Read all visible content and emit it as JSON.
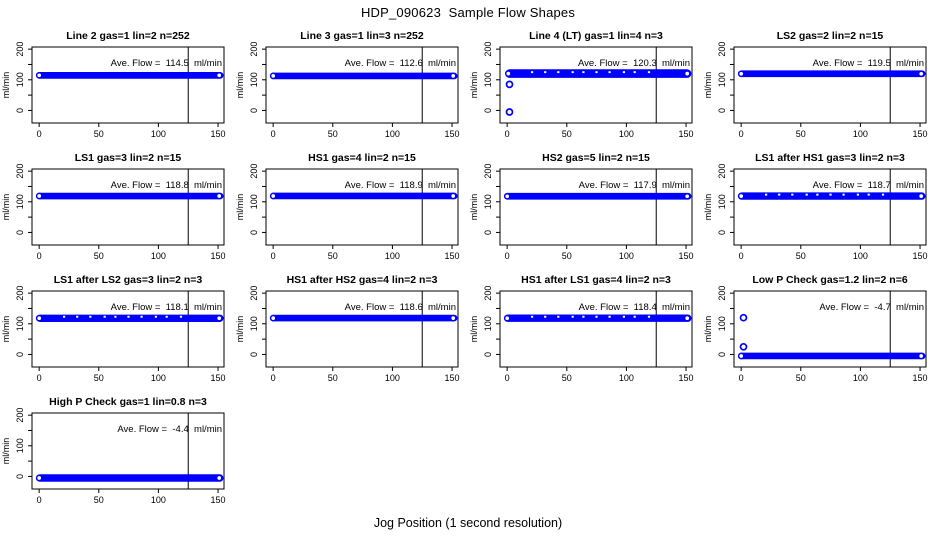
{
  "page": {
    "title": "HDP_090623  Sample Flow Shapes",
    "x_axis_label": "Jog Position (1 second resolution)"
  },
  "colors": {
    "accent": "#0000FF",
    "axis": "#000000",
    "background": "#FFFFFF"
  },
  "chart_data": [
    {
      "type": "scatter",
      "title": "Line 2 gas=1 lin=2 n=252",
      "annotation": "Ave. Flow =  114.5  ml/min",
      "ave_flow_ml_min": 114.5,
      "ylabel": "ml/min",
      "x_ticks": [
        0,
        50,
        100,
        150
      ],
      "y_ticks_all": [
        0,
        50,
        100,
        150,
        200
      ],
      "y_ticks_labeled": [
        0,
        100,
        200
      ],
      "xlim": [
        -6,
        155
      ],
      "ylim": [
        -41,
        207
      ],
      "vline_x": 125,
      "band": {
        "x_start": 0,
        "x_end": 152,
        "y_center": 114.5,
        "y_halfwidth": 11
      },
      "outliers": [],
      "speckled": false
    },
    {
      "type": "scatter",
      "title": "Line 3 gas=1 lin=3 n=252",
      "annotation": "Ave. Flow =  112.6  ml/min",
      "ave_flow_ml_min": 112.6,
      "ylabel": "ml/min",
      "x_ticks": [
        0,
        50,
        100,
        150
      ],
      "y_ticks_all": [
        0,
        50,
        100,
        150,
        200
      ],
      "y_ticks_labeled": [
        0,
        100,
        200
      ],
      "xlim": [
        -6,
        155
      ],
      "ylim": [
        -41,
        207
      ],
      "vline_x": 125,
      "band": {
        "x_start": 0,
        "x_end": 152,
        "y_center": 112.6,
        "y_halfwidth": 11
      },
      "outliers": [],
      "speckled": false
    },
    {
      "type": "scatter",
      "title": "Line 4 (LT) gas=1 lin=4 n=3",
      "annotation": "Ave. Flow =  120.3  ml/min",
      "ave_flow_ml_min": 120.3,
      "ylabel": "ml/min",
      "x_ticks": [
        0,
        50,
        100,
        150
      ],
      "y_ticks_all": [
        0,
        50,
        100,
        150,
        200
      ],
      "y_ticks_labeled": [
        0,
        100,
        200
      ],
      "xlim": [
        -6,
        155
      ],
      "ylim": [
        -41,
        207
      ],
      "vline_x": 125,
      "band": {
        "x_start": 1,
        "x_end": 152,
        "y_center": 120.3,
        "y_halfwidth": 14
      },
      "outliers": [
        {
          "x": 2,
          "y": 85
        },
        {
          "x": 2,
          "y": -5
        }
      ],
      "speckled": true
    },
    {
      "type": "scatter",
      "title": "LS2 gas=2 lin=2 n=15",
      "annotation": "Ave. Flow =  119.5  ml/min",
      "ave_flow_ml_min": 119.5,
      "ylabel": "ml/min",
      "x_ticks": [
        0,
        50,
        100,
        150
      ],
      "y_ticks_all": [
        0,
        50,
        100,
        150,
        200
      ],
      "y_ticks_labeled": [
        0,
        100,
        200
      ],
      "xlim": [
        -6,
        155
      ],
      "ylim": [
        -41,
        207
      ],
      "vline_x": 125,
      "band": {
        "x_start": 0,
        "x_end": 152,
        "y_center": 119.5,
        "y_halfwidth": 11
      },
      "outliers": [],
      "speckled": false
    },
    {
      "type": "scatter",
      "title": "LS1 gas=3 lin=2 n=15",
      "annotation": "Ave. Flow =  118.8  ml/min",
      "ave_flow_ml_min": 118.8,
      "ylabel": "ml/min",
      "x_ticks": [
        0,
        50,
        100,
        150
      ],
      "y_ticks_all": [
        0,
        50,
        100,
        150,
        200
      ],
      "y_ticks_labeled": [
        0,
        100,
        200
      ],
      "xlim": [
        -6,
        155
      ],
      "ylim": [
        -41,
        207
      ],
      "vline_x": 125,
      "band": {
        "x_start": 0,
        "x_end": 152,
        "y_center": 118.8,
        "y_halfwidth": 11
      },
      "outliers": [],
      "speckled": false
    },
    {
      "type": "scatter",
      "title": "HS1 gas=4 lin=2 n=15",
      "annotation": "Ave. Flow =  118.9  ml/min",
      "ave_flow_ml_min": 118.9,
      "ylabel": "ml/min",
      "x_ticks": [
        0,
        50,
        100,
        150
      ],
      "y_ticks_all": [
        0,
        50,
        100,
        150,
        200
      ],
      "y_ticks_labeled": [
        0,
        100,
        200
      ],
      "xlim": [
        -6,
        155
      ],
      "ylim": [
        -41,
        207
      ],
      "vline_x": 125,
      "band": {
        "x_start": 0,
        "x_end": 152,
        "y_center": 118.9,
        "y_halfwidth": 11
      },
      "outliers": [],
      "speckled": false
    },
    {
      "type": "scatter",
      "title": "HS2 gas=5 lin=2 n=15",
      "annotation": "Ave. Flow =  117.9  ml/min",
      "ave_flow_ml_min": 117.9,
      "ylabel": "ml/min",
      "x_ticks": [
        0,
        50,
        100,
        150
      ],
      "y_ticks_all": [
        0,
        50,
        100,
        150,
        200
      ],
      "y_ticks_labeled": [
        0,
        100,
        200
      ],
      "xlim": [
        -6,
        155
      ],
      "ylim": [
        -41,
        207
      ],
      "vline_x": 125,
      "band": {
        "x_start": 0,
        "x_end": 152,
        "y_center": 117.9,
        "y_halfwidth": 11
      },
      "outliers": [],
      "speckled": false
    },
    {
      "type": "scatter",
      "title": "LS1 after HS1 gas=3 lin=2 n=3",
      "annotation": "Ave. Flow =  118.7  ml/min",
      "ave_flow_ml_min": 118.7,
      "ylabel": "ml/min",
      "x_ticks": [
        0,
        50,
        100,
        150
      ],
      "y_ticks_all": [
        0,
        50,
        100,
        150,
        200
      ],
      "y_ticks_labeled": [
        0,
        100,
        200
      ],
      "xlim": [
        -6,
        155
      ],
      "ylim": [
        -41,
        207
      ],
      "vline_x": 125,
      "band": {
        "x_start": 0,
        "x_end": 152,
        "y_center": 118.7,
        "y_halfwidth": 12
      },
      "outliers": [],
      "speckled": true
    },
    {
      "type": "scatter",
      "title": "LS1 after LS2 gas=3 lin=2 n=3",
      "annotation": "Ave. Flow =  118.1  ml/min",
      "ave_flow_ml_min": 118.1,
      "ylabel": "ml/min",
      "x_ticks": [
        0,
        50,
        100,
        150
      ],
      "y_ticks_all": [
        0,
        50,
        100,
        150,
        200
      ],
      "y_ticks_labeled": [
        0,
        100,
        200
      ],
      "xlim": [
        -6,
        155
      ],
      "ylim": [
        -41,
        207
      ],
      "vline_x": 125,
      "band": {
        "x_start": 0,
        "x_end": 152,
        "y_center": 118.1,
        "y_halfwidth": 12
      },
      "outliers": [],
      "speckled": true
    },
    {
      "type": "scatter",
      "title": "HS1 after HS2 gas=4 lin=2 n=3",
      "annotation": "Ave. Flow =  118.6  ml/min",
      "ave_flow_ml_min": 118.6,
      "ylabel": "ml/min",
      "x_ticks": [
        0,
        50,
        100,
        150
      ],
      "y_ticks_all": [
        0,
        50,
        100,
        150,
        200
      ],
      "y_ticks_labeled": [
        0,
        100,
        200
      ],
      "xlim": [
        -6,
        155
      ],
      "ylim": [
        -41,
        207
      ],
      "vline_x": 125,
      "band": {
        "x_start": 0,
        "x_end": 152,
        "y_center": 118.6,
        "y_halfwidth": 11
      },
      "outliers": [],
      "speckled": false
    },
    {
      "type": "scatter",
      "title": "HS1 after LS1 gas=4 lin=2 n=3",
      "annotation": "Ave. Flow =  118.4  ml/min",
      "ave_flow_ml_min": 118.4,
      "ylabel": "ml/min",
      "x_ticks": [
        0,
        50,
        100,
        150
      ],
      "y_ticks_all": [
        0,
        50,
        100,
        150,
        200
      ],
      "y_ticks_labeled": [
        0,
        100,
        200
      ],
      "xlim": [
        -6,
        155
      ],
      "ylim": [
        -41,
        207
      ],
      "vline_x": 125,
      "band": {
        "x_start": 0,
        "x_end": 152,
        "y_center": 118.4,
        "y_halfwidth": 12
      },
      "outliers": [],
      "speckled": true
    },
    {
      "type": "scatter",
      "title": "Low P Check gas=1.2 lin=2 n=6",
      "annotation": "Ave. Flow =  -4.7  ml/min",
      "ave_flow_ml_min": -4.7,
      "ylabel": "ml/min",
      "x_ticks": [
        0,
        50,
        100,
        150
      ],
      "y_ticks_all": [
        0,
        50,
        100,
        150,
        200
      ],
      "y_ticks_labeled": [
        0,
        100,
        200
      ],
      "xlim": [
        -6,
        155
      ],
      "ylim": [
        -41,
        207
      ],
      "vline_x": 125,
      "band": {
        "x_start": 0,
        "x_end": 152,
        "y_center": -5,
        "y_halfwidth": 11
      },
      "outliers": [
        {
          "x": 2,
          "y": 120
        },
        {
          "x": 2,
          "y": 25
        }
      ],
      "speckled": false
    },
    {
      "type": "scatter",
      "title": "High P Check gas=1 lin=0.8 n=3",
      "annotation": "Ave. Flow =  -4.4  ml/min",
      "ave_flow_ml_min": -4.4,
      "ylabel": "ml/min",
      "x_ticks": [
        0,
        50,
        100,
        150
      ],
      "y_ticks_all": [
        0,
        50,
        100,
        150,
        200
      ],
      "y_ticks_labeled": [
        0,
        100,
        200
      ],
      "xlim": [
        -6,
        155
      ],
      "ylim": [
        -41,
        207
      ],
      "vline_x": 125,
      "band": {
        "x_start": 0,
        "x_end": 152,
        "y_center": -5,
        "y_halfwidth": 12
      },
      "outliers": [],
      "speckled": false
    }
  ]
}
